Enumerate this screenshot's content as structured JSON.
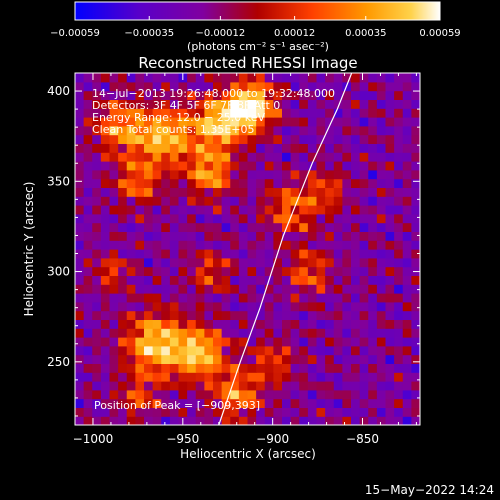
{
  "chart_data": {
    "type": "heatmap",
    "title": "Reconstructed RHESSI Image",
    "xlabel": "Heliocentric X (arcsec)",
    "ylabel": "Heliocentric Y (arcsec)",
    "xlim": [
      -1010,
      -818
    ],
    "ylim": [
      215,
      410
    ],
    "xticks": [
      -1000,
      -950,
      -900,
      -850
    ],
    "xtick_labels": [
      "−1000",
      "−950",
      "−900",
      "−850"
    ],
    "yticks": [
      250,
      300,
      350,
      400
    ],
    "ytick_labels": [
      "250",
      "300",
      "350",
      "400"
    ],
    "annotations": [
      "14−Jul−2013 19:26:48.000 to 19:32:48.000",
      "Detectors: 3F 4F 5F 6F 7F 8F  Att 0",
      "Energy Range: 12.0 − 25.0 keV",
      "Clean      Total counts: 1.35E+05"
    ],
    "peak_label": "Position of Peak = [−909,393]",
    "peak": [
      -909,
      393
    ],
    "colorbar": {
      "range": [
        -0.00059,
        0.00059
      ],
      "ticks": [
        -0.00059,
        -0.00035,
        -0.00012,
        0.00012,
        0.00035,
        0.00059
      ],
      "tick_labels": [
        "−0.00059",
        "−0.00035",
        "−0.00012",
        "0.00012",
        "0.00035",
        "0.00059"
      ],
      "units_label": "(photons cm⁻² s⁻¹ asec⁻²)",
      "colors": [
        "#0000ff",
        "#5a00c8",
        "#8000a0",
        "#b00000",
        "#ff4000",
        "#ff9900",
        "#ffd24a",
        "#ffffff"
      ]
    },
    "limb_curve": [
      [
        -930,
        215
      ],
      [
        -918,
        250
      ],
      [
        -907,
        280
      ],
      [
        -894,
        320
      ],
      [
        -878,
        360
      ],
      [
        -864,
        390
      ],
      [
        -856,
        410
      ]
    ],
    "grid": false,
    "timestamp": "15−May−2022 14:24",
    "image_grid": {
      "nx": 40,
      "ny": 40,
      "hotspots": [
        {
          "x": -985,
          "y": 380,
          "amp": 0.55,
          "r": 10
        },
        {
          "x": -960,
          "y": 375,
          "amp": 0.7,
          "r": 11
        },
        {
          "x": -930,
          "y": 382,
          "amp": 0.75,
          "r": 10
        },
        {
          "x": -912,
          "y": 392,
          "amp": 0.95,
          "r": 9
        },
        {
          "x": -935,
          "y": 355,
          "amp": 0.6,
          "r": 9
        },
        {
          "x": -975,
          "y": 350,
          "amp": 0.45,
          "r": 9
        },
        {
          "x": -990,
          "y": 300,
          "amp": 0.35,
          "r": 7
        },
        {
          "x": -935,
          "y": 300,
          "amp": 0.35,
          "r": 8
        },
        {
          "x": -965,
          "y": 260,
          "amp": 0.75,
          "r": 12
        },
        {
          "x": -940,
          "y": 255,
          "amp": 0.7,
          "r": 10
        },
        {
          "x": -920,
          "y": 232,
          "amp": 0.55,
          "r": 9
        },
        {
          "x": -890,
          "y": 335,
          "amp": 0.45,
          "r": 10
        },
        {
          "x": -880,
          "y": 300,
          "amp": 0.4,
          "r": 9
        },
        {
          "x": -900,
          "y": 250,
          "amp": 0.35,
          "r": 9
        },
        {
          "x": -870,
          "y": 345,
          "amp": 0.35,
          "r": 8
        },
        {
          "x": -975,
          "y": 230,
          "amp": 0.35,
          "r": 8
        }
      ]
    }
  }
}
